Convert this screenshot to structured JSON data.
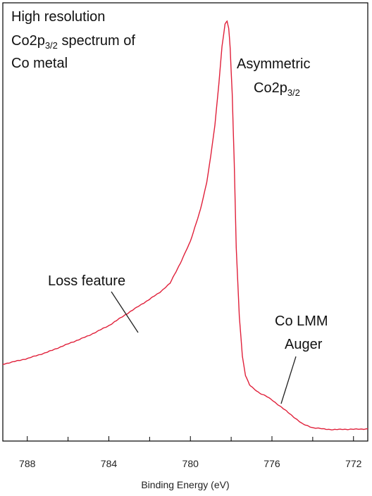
{
  "chart_data": {
    "type": "line",
    "title_lines": [
      "High  resolution",
      "Co2p",
      "3/2",
      " spectrum of",
      "Co metal"
    ],
    "xlabel": "Binding Energy (eV)",
    "ylabel": "",
    "x_reversed": true,
    "xlim": [
      789.2,
      771.3
    ],
    "ylim": [
      0,
      100
    ],
    "xticks": [
      788,
      784,
      780,
      776,
      772
    ],
    "grid": false,
    "line_color": "#e0203a",
    "series": [
      {
        "x": [
          789.2,
          788.0,
          787.0,
          786.0,
          785.0,
          784.0,
          783.0,
          782.0,
          781.5,
          781.0,
          780.5,
          780.0,
          779.5,
          779.2,
          779.0,
          778.8,
          778.6,
          778.45,
          778.3,
          778.2,
          778.12,
          778.05,
          777.95,
          777.85,
          777.75,
          777.6,
          777.45,
          777.3,
          777.1,
          776.9,
          776.6,
          776.3,
          776.0,
          775.5,
          775.0,
          774.5,
          774.0,
          773.5,
          773.0,
          772.5,
          772.0,
          771.3
        ],
        "y": [
          15.6,
          17.0,
          18.6,
          20.6,
          22.6,
          25.1,
          28.4,
          31.6,
          33.3,
          35.5,
          40.4,
          45.8,
          53.8,
          60.2,
          66.9,
          74.4,
          84.7,
          93.7,
          99.3,
          100.0,
          98.3,
          93.4,
          82.1,
          65.0,
          44.2,
          27.4,
          17.6,
          12.9,
          10.5,
          9.6,
          8.5,
          7.8,
          6.8,
          4.9,
          2.9,
          0.9,
          0.0,
          -0.3,
          -0.5,
          -0.4,
          -0.4,
          -0.3
        ]
      }
    ],
    "annotations": [
      {
        "id": "asym",
        "lines": [
          "Asymmetric",
          "Co2p",
          "3/2"
        ]
      },
      {
        "id": "loss",
        "text": "Loss feature",
        "points_at": [
          782.7,
          29.0
        ]
      },
      {
        "id": "auger",
        "lines": [
          "Co LMM",
          "Auger"
        ],
        "points_at": [
          775.5,
          5.3
        ]
      }
    ]
  }
}
